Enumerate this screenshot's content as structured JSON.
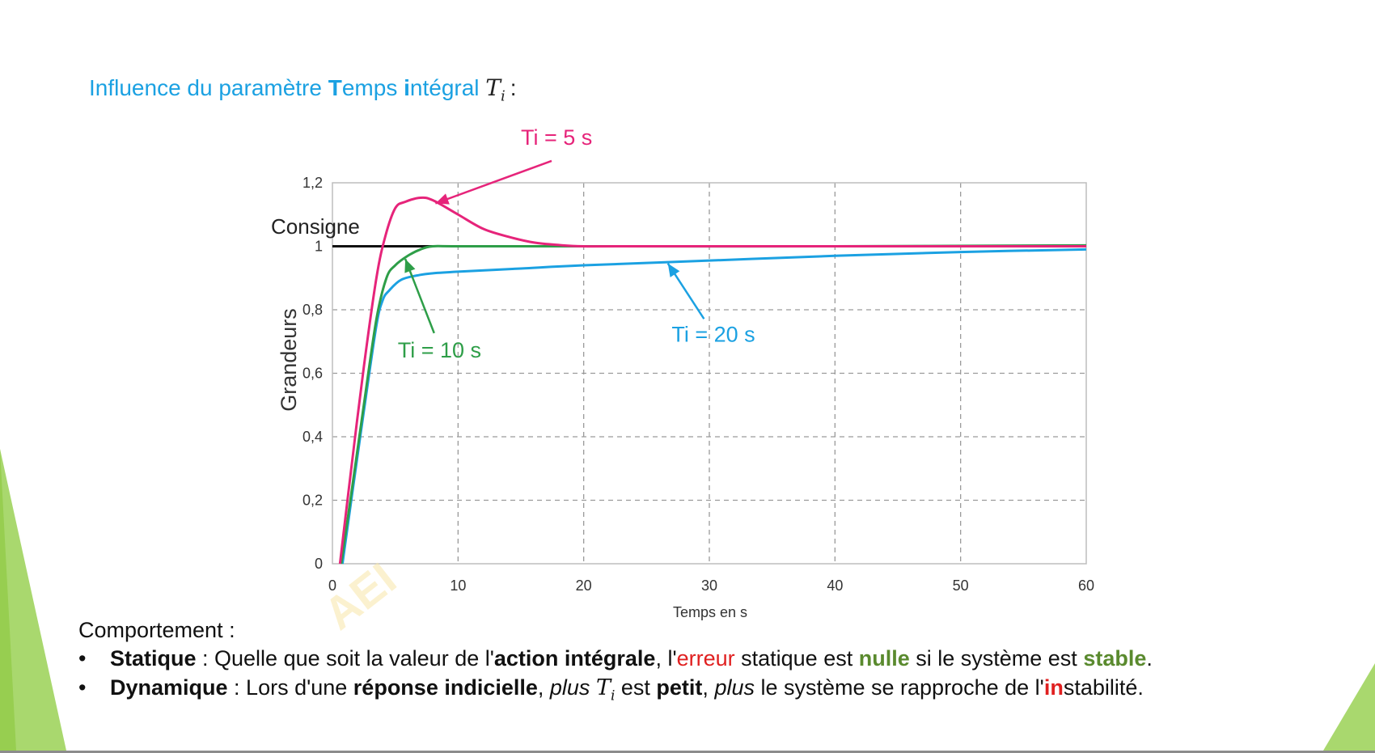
{
  "heading": {
    "text_1": "Influence du paramètre ",
    "bold_T": "T",
    "text_2": "emps ",
    "bold_i": "i",
    "text_3": "ntégral ",
    "math_var": "T",
    "math_sub": "i",
    "colon": ":"
  },
  "colors": {
    "heading": "#1ba1e2",
    "ti5": "#e6247a",
    "ti10": "#2e9e48",
    "ti20": "#1ba1e2",
    "consigne": "#111111",
    "accent_green": "#8cc83c"
  },
  "chart_data": {
    "type": "line",
    "xlabel": "Temps en s",
    "ylabel": "Grandeurs",
    "xlim": [
      0,
      60
    ],
    "ylim": [
      0,
      1.2
    ],
    "x_ticks": [
      "0",
      "10",
      "20",
      "30",
      "40",
      "50",
      "60"
    ],
    "y_ticks": [
      "0",
      "0,2",
      "0,4",
      "0,6",
      "0,8",
      "1",
      "1,2"
    ],
    "grid": true,
    "consigne": {
      "label": "Consigne",
      "x": [
        0,
        8
      ],
      "y": [
        1,
        1
      ]
    },
    "series": [
      {
        "name": "Ti = 5 s",
        "color": "#e6247a",
        "x": [
          0.6,
          1.5,
          2.5,
          3.5,
          4.2,
          5.0,
          5.8,
          7.0,
          8.0,
          10,
          12,
          14,
          16,
          18,
          20,
          25,
          60
        ],
        "y": [
          0,
          0.3,
          0.62,
          0.9,
          1.03,
          1.12,
          1.14,
          1.153,
          1.145,
          1.1,
          1.055,
          1.03,
          1.012,
          1.004,
          1.0,
          1.0,
          1.0
        ]
      },
      {
        "name": "Ti = 10 s",
        "color": "#2e9e48",
        "x": [
          0.7,
          1.5,
          2.5,
          3.5,
          4.3,
          5.0,
          6.0,
          7.0,
          8.0,
          10,
          20,
          40,
          60
        ],
        "y": [
          0,
          0.22,
          0.5,
          0.77,
          0.9,
          0.94,
          0.97,
          0.99,
          1.0,
          1.0,
          1.0,
          1.0,
          1.003
        ]
      },
      {
        "name": "Ti = 20 s",
        "color": "#1ba1e2",
        "x": [
          0.8,
          1.5,
          2.5,
          3.5,
          4.0,
          4.5,
          5.5,
          7.0,
          8.0,
          10,
          15,
          20,
          30,
          40,
          50,
          60
        ],
        "y": [
          0,
          0.2,
          0.48,
          0.75,
          0.83,
          0.86,
          0.895,
          0.91,
          0.915,
          0.92,
          0.93,
          0.94,
          0.955,
          0.97,
          0.982,
          0.99
        ]
      }
    ],
    "annotations": [
      {
        "text": "Ti = 5 s",
        "series": 0,
        "label_at": [
          15,
          1.32
        ],
        "arrow_to": [
          8.2,
          1.135
        ]
      },
      {
        "text": "Ti = 10 s",
        "series": 1,
        "label_at": [
          5.2,
          0.65
        ],
        "arrow_to": [
          5.8,
          0.96
        ]
      },
      {
        "text": "Ti = 20 s",
        "series": 2,
        "label_at": [
          27,
          0.7
        ],
        "arrow_to": [
          26.7,
          0.946
        ]
      }
    ]
  },
  "behaviour": {
    "title": "Comportement :",
    "static": {
      "bullet": "•",
      "label": "Statique",
      "t1": " : Quelle que soit la valeur de l'",
      "b1": "action intégrale",
      "t2": ", l'",
      "r1": "erreur",
      "t3": " statique est ",
      "g1": "nulle",
      "t4": " si le système est ",
      "g2": "stable",
      "t5": "."
    },
    "dynamic": {
      "bullet": "•",
      "label": "Dynamique",
      "t1": " : Lors d'une ",
      "b1": "réponse indicielle",
      "t2": ", ",
      "i1": "plus",
      "t3": " ",
      "m_var": "T",
      "m_sub": "i",
      "t4": " est ",
      "b2": "petit",
      "t5": ", ",
      "i2": "plus",
      "t6": " le système se rapproche de l'",
      "r1": "in",
      "t7": "stabilité."
    }
  },
  "watermark": "AEI"
}
